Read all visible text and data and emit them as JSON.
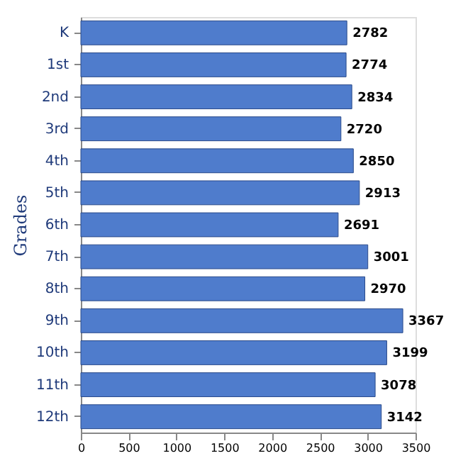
{
  "chart_data": {
    "type": "bar",
    "orientation": "horizontal",
    "ylabel": "Grades",
    "categories": [
      "K",
      "1st",
      "2nd",
      "3rd",
      "4th",
      "5th",
      "6th",
      "7th",
      "8th",
      "9th",
      "10th",
      "11th",
      "12th"
    ],
    "values": [
      2782,
      2774,
      2834,
      2720,
      2850,
      2913,
      2691,
      3001,
      2970,
      3367,
      3199,
      3078,
      3142
    ],
    "color": "#4f7ccc",
    "xlim": [
      0,
      3500
    ],
    "xticks": [
      0,
      500,
      1000,
      1500,
      2000,
      2500,
      3000,
      3500
    ],
    "data_labels": true,
    "grid": false
  }
}
